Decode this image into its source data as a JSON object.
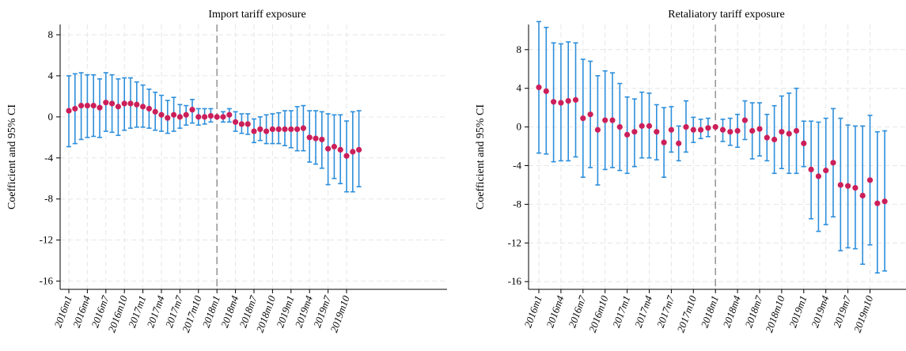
{
  "chart_data": [
    {
      "type": "scatter",
      "subtype": "coefficient plot with 95% CI error bars",
      "title": "Import tariff exposure",
      "ylabel": "Coefficient and 95% CI",
      "xlabel": "",
      "ylim": [
        -16.8,
        9.0
      ],
      "yticks": [
        8,
        4,
        0,
        -4,
        -8,
        -12,
        -16
      ],
      "xtick_labels": [
        "2016m1",
        "2016m4",
        "2016m7",
        "2016m10",
        "2017m1",
        "2017m4",
        "2017m7",
        "2017m10",
        "2018m1",
        "2018m4",
        "2018m7",
        "2018m10",
        "2019m1",
        "2019m4",
        "2019m7",
        "2019m10"
      ],
      "event_line": "2018m1",
      "grid": true,
      "colors": {
        "point": "#cc1f5a",
        "ci": "#2e8fdb",
        "event_line": "#9a9a9a",
        "grid": "#e6e6e6"
      },
      "points": [
        {
          "x": "2016m1",
          "y": 0.6,
          "lo": -2.9,
          "hi": 4.0
        },
        {
          "x": "2016m2",
          "y": 0.8,
          "lo": -2.6,
          "hi": 4.2
        },
        {
          "x": "2016m3",
          "y": 1.1,
          "lo": -2.2,
          "hi": 4.3
        },
        {
          "x": "2016m4",
          "y": 1.1,
          "lo": -2.0,
          "hi": 4.1
        },
        {
          "x": "2016m5",
          "y": 1.1,
          "lo": -1.9,
          "hi": 4.1
        },
        {
          "x": "2016m6",
          "y": 0.9,
          "lo": -2.0,
          "hi": 3.7
        },
        {
          "x": "2016m7",
          "y": 1.4,
          "lo": -1.4,
          "hi": 4.3
        },
        {
          "x": "2016m8",
          "y": 1.3,
          "lo": -1.5,
          "hi": 4.1
        },
        {
          "x": "2016m9",
          "y": 1.0,
          "lo": -1.8,
          "hi": 3.7
        },
        {
          "x": "2016m10",
          "y": 1.3,
          "lo": -1.3,
          "hi": 3.8
        },
        {
          "x": "2016m11",
          "y": 1.3,
          "lo": -1.1,
          "hi": 3.8
        },
        {
          "x": "2016m12",
          "y": 1.2,
          "lo": -1.0,
          "hi": 3.4
        },
        {
          "x": "2017m1",
          "y": 1.0,
          "lo": -1.0,
          "hi": 3.1
        },
        {
          "x": "2017m2",
          "y": 0.8,
          "lo": -1.1,
          "hi": 2.7
        },
        {
          "x": "2017m3",
          "y": 0.5,
          "lo": -1.3,
          "hi": 2.4
        },
        {
          "x": "2017m4",
          "y": 0.2,
          "lo": -1.4,
          "hi": 2.1
        },
        {
          "x": "2017m5",
          "y": -0.1,
          "lo": -1.6,
          "hi": 1.6
        },
        {
          "x": "2017m6",
          "y": 0.2,
          "lo": -1.4,
          "hi": 1.9
        },
        {
          "x": "2017m7",
          "y": 0.0,
          "lo": -1.1,
          "hi": 1.2
        },
        {
          "x": "2017m8",
          "y": 0.2,
          "lo": -0.8,
          "hi": 1.1
        },
        {
          "x": "2017m9",
          "y": 0.7,
          "lo": -0.6,
          "hi": 1.7
        },
        {
          "x": "2017m10",
          "y": 0.0,
          "lo": -0.8,
          "hi": 0.8
        },
        {
          "x": "2017m11",
          "y": 0.0,
          "lo": -0.7,
          "hi": 0.8
        },
        {
          "x": "2017m12",
          "y": 0.1,
          "lo": -0.5,
          "hi": 0.8
        },
        {
          "x": "2018m1",
          "y": 0.0,
          "lo": 0.0,
          "hi": 0.0
        },
        {
          "x": "2018m2",
          "y": 0.0,
          "lo": -0.5,
          "hi": 0.5
        },
        {
          "x": "2018m3",
          "y": 0.2,
          "lo": -0.5,
          "hi": 0.8
        },
        {
          "x": "2018m4",
          "y": -0.5,
          "lo": -1.4,
          "hi": 0.5
        },
        {
          "x": "2018m5",
          "y": -0.7,
          "lo": -1.6,
          "hi": 0.3
        },
        {
          "x": "2018m6",
          "y": -0.7,
          "lo": -1.7,
          "hi": 0.3
        },
        {
          "x": "2018m7",
          "y": -1.4,
          "lo": -2.5,
          "hi": -0.2
        },
        {
          "x": "2018m8",
          "y": -1.2,
          "lo": -2.3,
          "hi": 0.0
        },
        {
          "x": "2018m9",
          "y": -1.4,
          "lo": -2.6,
          "hi": 0.2
        },
        {
          "x": "2018m10",
          "y": -1.2,
          "lo": -2.6,
          "hi": 0.3
        },
        {
          "x": "2018m11",
          "y": -1.2,
          "lo": -2.6,
          "hi": 0.4
        },
        {
          "x": "2018m12",
          "y": -1.2,
          "lo": -2.8,
          "hi": 0.6
        },
        {
          "x": "2019m1",
          "y": -1.2,
          "lo": -3.0,
          "hi": 0.6
        },
        {
          "x": "2019m2",
          "y": -1.2,
          "lo": -3.3,
          "hi": 1.0
        },
        {
          "x": "2019m3",
          "y": -1.1,
          "lo": -3.3,
          "hi": 1.1
        },
        {
          "x": "2019m4",
          "y": -2.0,
          "lo": -4.4,
          "hi": 0.6
        },
        {
          "x": "2019m5",
          "y": -2.1,
          "lo": -4.6,
          "hi": 0.6
        },
        {
          "x": "2019m6",
          "y": -2.2,
          "lo": -5.0,
          "hi": 0.5
        },
        {
          "x": "2019m7",
          "y": -3.1,
          "lo": -6.6,
          "hi": 0.3
        },
        {
          "x": "2019m8",
          "y": -2.9,
          "lo": -6.0,
          "hi": 0.2
        },
        {
          "x": "2019m9",
          "y": -3.2,
          "lo": -6.5,
          "hi": 0.2
        },
        {
          "x": "2019m10",
          "y": -3.8,
          "lo": -7.3,
          "hi": -0.4
        },
        {
          "x": "2019m11",
          "y": -3.4,
          "lo": -7.3,
          "hi": 0.5
        },
        {
          "x": "2019m12",
          "y": -3.2,
          "lo": -6.8,
          "hi": 0.6
        }
      ]
    },
    {
      "type": "scatter",
      "subtype": "coefficient plot with 95% CI error bars",
      "title": "Retaliatory tariff exposure",
      "ylabel": "Coefficient and 95% CI",
      "xlabel": "",
      "ylim": [
        -16.8,
        10.6
      ],
      "yticks": [
        8,
        4,
        0,
        -4,
        -8,
        -12,
        -16
      ],
      "xtick_labels": [
        "2016m1",
        "2016m4",
        "2016m7",
        "2016m10",
        "2017m1",
        "2017m4",
        "2017m7",
        "2017m10",
        "2018m1",
        "2018m4",
        "2018m7",
        "2018m10",
        "2019m1",
        "2019m4",
        "2019m7",
        "2019m10"
      ],
      "event_line": "2018m1",
      "grid": true,
      "colors": {
        "point": "#cc1f5a",
        "ci": "#2e8fdb",
        "event_line": "#9a9a9a",
        "grid": "#e6e6e6"
      },
      "points": [
        {
          "x": "2016m1",
          "y": 4.1,
          "lo": -2.7,
          "hi": 10.9
        },
        {
          "x": "2016m2",
          "y": 3.7,
          "lo": -2.8,
          "hi": 10.3
        },
        {
          "x": "2016m3",
          "y": 2.6,
          "lo": -3.6,
          "hi": 8.7
        },
        {
          "x": "2016m4",
          "y": 2.5,
          "lo": -3.5,
          "hi": 8.6
        },
        {
          "x": "2016m5",
          "y": 2.7,
          "lo": -3.5,
          "hi": 8.8
        },
        {
          "x": "2016m6",
          "y": 2.8,
          "lo": -3.1,
          "hi": 8.7
        },
        {
          "x": "2016m7",
          "y": 0.9,
          "lo": -5.2,
          "hi": 7.0
        },
        {
          "x": "2016m8",
          "y": 1.3,
          "lo": -4.2,
          "hi": 6.8
        },
        {
          "x": "2016m9",
          "y": -0.3,
          "lo": -6.0,
          "hi": 5.3
        },
        {
          "x": "2016m10",
          "y": 0.7,
          "lo": -4.4,
          "hi": 5.8
        },
        {
          "x": "2016m11",
          "y": 0.7,
          "lo": -4.2,
          "hi": 5.6
        },
        {
          "x": "2016m12",
          "y": 0.0,
          "lo": -4.5,
          "hi": 4.5
        },
        {
          "x": "2017m1",
          "y": -0.8,
          "lo": -4.8,
          "hi": 3.1
        },
        {
          "x": "2017m2",
          "y": -0.5,
          "lo": -4.1,
          "hi": 2.9
        },
        {
          "x": "2017m3",
          "y": 0.1,
          "lo": -3.2,
          "hi": 3.6
        },
        {
          "x": "2017m4",
          "y": 0.1,
          "lo": -3.2,
          "hi": 3.5
        },
        {
          "x": "2017m5",
          "y": -0.5,
          "lo": -3.4,
          "hi": 2.3
        },
        {
          "x": "2017m6",
          "y": -1.6,
          "lo": -5.2,
          "hi": 2.0
        },
        {
          "x": "2017m7",
          "y": -0.3,
          "lo": -2.6,
          "hi": 2.1
        },
        {
          "x": "2017m8",
          "y": -1.7,
          "lo": -3.5,
          "hi": 0.1
        },
        {
          "x": "2017m9",
          "y": 0.0,
          "lo": -2.6,
          "hi": 2.7
        },
        {
          "x": "2017m10",
          "y": -0.3,
          "lo": -1.6,
          "hi": 1.0
        },
        {
          "x": "2017m11",
          "y": -0.3,
          "lo": -1.2,
          "hi": 0.8
        },
        {
          "x": "2017m12",
          "y": -0.1,
          "lo": -1.0,
          "hi": 0.9
        },
        {
          "x": "2018m1",
          "y": 0.0,
          "lo": 0.0,
          "hi": 0.0
        },
        {
          "x": "2018m2",
          "y": -0.3,
          "lo": -1.5,
          "hi": 0.8
        },
        {
          "x": "2018m3",
          "y": -0.5,
          "lo": -1.9,
          "hi": 0.9
        },
        {
          "x": "2018m4",
          "y": -0.4,
          "lo": -2.1,
          "hi": 1.3
        },
        {
          "x": "2018m5",
          "y": 0.7,
          "lo": -1.3,
          "hi": 2.7
        },
        {
          "x": "2018m6",
          "y": -0.4,
          "lo": -3.3,
          "hi": 2.5
        },
        {
          "x": "2018m7",
          "y": -0.2,
          "lo": -3.0,
          "hi": 2.5
        },
        {
          "x": "2018m8",
          "y": -1.1,
          "lo": -3.5,
          "hi": 1.3
        },
        {
          "x": "2018m9",
          "y": -1.3,
          "lo": -4.8,
          "hi": 2.2
        },
        {
          "x": "2018m10",
          "y": -0.5,
          "lo": -4.3,
          "hi": 3.2
        },
        {
          "x": "2018m11",
          "y": -0.7,
          "lo": -4.8,
          "hi": 3.5
        },
        {
          "x": "2018m12",
          "y": -0.4,
          "lo": -4.8,
          "hi": 4.0
        },
        {
          "x": "2019m1",
          "y": -1.7,
          "lo": -4.1,
          "hi": 0.6
        },
        {
          "x": "2019m2",
          "y": -4.4,
          "lo": -9.5,
          "hi": 0.6
        },
        {
          "x": "2019m3",
          "y": -5.1,
          "lo": -10.8,
          "hi": 0.5
        },
        {
          "x": "2019m4",
          "y": -4.5,
          "lo": -10.1,
          "hi": 0.9
        },
        {
          "x": "2019m5",
          "y": -3.7,
          "lo": -9.3,
          "hi": 1.9
        },
        {
          "x": "2019m6",
          "y": -6.0,
          "lo": -12.8,
          "hi": 0.9
        },
        {
          "x": "2019m7",
          "y": -6.1,
          "lo": -12.5,
          "hi": 0.2
        },
        {
          "x": "2019m8",
          "y": -6.3,
          "lo": -12.6,
          "hi": 0.1
        },
        {
          "x": "2019m9",
          "y": -7.1,
          "lo": -14.2,
          "hi": 0.1
        },
        {
          "x": "2019m10",
          "y": -5.5,
          "lo": -12.2,
          "hi": 1.2
        },
        {
          "x": "2019m11",
          "y": -7.9,
          "lo": -15.1,
          "hi": -0.5
        },
        {
          "x": "2019m12",
          "y": -7.7,
          "lo": -14.9,
          "hi": -0.4
        }
      ]
    }
  ]
}
